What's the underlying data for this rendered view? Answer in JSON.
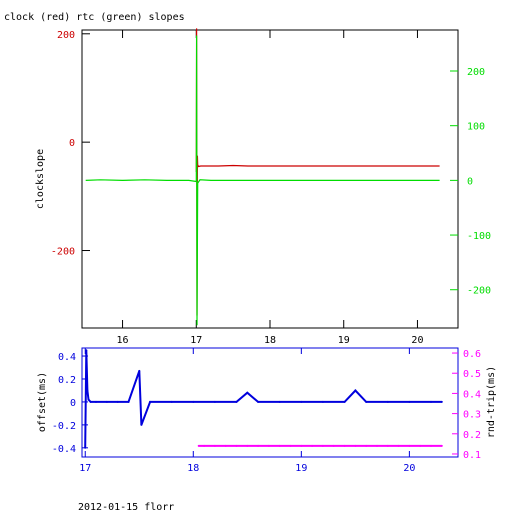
{
  "title": "clock (red) rtc (green) slopes",
  "footer": "2012-01-15 florr",
  "colors": {
    "clock": "#cc0000",
    "rtc": "#00dd00",
    "offset": "#0000dd",
    "rndtrip": "#ff00ff",
    "axis": "#000000"
  },
  "chart_data": [
    {
      "type": "line",
      "title": "clock (red) rtc (green) slopes",
      "ylabel": "clockslope",
      "xlim": [
        15.45,
        20.55
      ],
      "ylim": [
        -343,
        207
      ],
      "y2lim": [
        -270,
        275
      ],
      "x_ticks": [
        16,
        17,
        18,
        19,
        20
      ],
      "y_ticks": [
        200,
        0,
        -200
      ],
      "y2_ticks": [
        200,
        100,
        0,
        -100,
        -200
      ],
      "grid": false,
      "series": [
        {
          "name": "clock",
          "axis": "left",
          "x": [
            17.0,
            17.005,
            17.01,
            17.015,
            17.02,
            17.03,
            17.06,
            17.1,
            17.2,
            17.3,
            17.5,
            17.7,
            18.0,
            18.3,
            18.5,
            18.7,
            19.0,
            19.3,
            19.5,
            19.7,
            20.0,
            20.3
          ],
          "y": [
            -55,
            210,
            -320,
            -25,
            -42,
            -45,
            -44,
            -44,
            -44,
            -44,
            -43,
            -44,
            -44,
            -44,
            -44,
            -44,
            -44,
            -44,
            -44,
            -44,
            -44,
            -44
          ]
        },
        {
          "name": "rtc",
          "axis": "right",
          "x": [
            15.5,
            15.7,
            16.0,
            16.3,
            16.6,
            16.9,
            17.0,
            17.005,
            17.01,
            17.02,
            17.05,
            17.2,
            17.4,
            17.6,
            18.0,
            18.3,
            18.6,
            19.0,
            19.3,
            19.6,
            20.0,
            20.3
          ],
          "y": [
            0,
            1,
            0,
            1,
            0,
            0,
            -2,
            265,
            -265,
            -5,
            1,
            0,
            0,
            0,
            0,
            0,
            0,
            0,
            0,
            0,
            0,
            0
          ]
        }
      ]
    },
    {
      "type": "scatter",
      "ylabel": "offset(ms)",
      "y2label": "rnd-trip(ms)",
      "xlim": [
        16.97,
        20.45
      ],
      "ylim": [
        -0.48,
        0.47
      ],
      "y2lim": [
        0.085,
        0.625
      ],
      "x_ticks": [
        17,
        18,
        19,
        20
      ],
      "y_ticks": [
        0.4,
        0.2,
        0,
        -0.2,
        -0.4
      ],
      "y2_ticks": [
        0.6,
        0.5,
        0.4,
        0.3,
        0.2,
        0.1
      ],
      "grid": false,
      "series": [
        {
          "name": "offset",
          "axis": "left",
          "x": [
            17.0,
            17.01,
            17.02,
            17.03,
            17.05,
            17.1,
            17.2,
            17.3,
            17.4,
            17.5,
            17.52,
            17.6,
            17.8,
            18.0,
            18.2,
            18.4,
            18.5,
            18.6,
            18.8,
            19.0,
            19.2,
            19.4,
            19.5,
            19.6,
            19.8,
            20.0,
            20.2,
            20.3
          ],
          "y": [
            -0.4,
            0.45,
            0.1,
            0.02,
            0.0,
            0.0,
            0.0,
            0.0,
            0.0,
            0.27,
            -0.2,
            0.0,
            0.0,
            0.0,
            0.0,
            0.0,
            0.08,
            0.0,
            0.0,
            0.0,
            0.0,
            0.0,
            0.1,
            0.0,
            0.0,
            0.0,
            0.0,
            0.0
          ]
        },
        {
          "name": "rnd-trip",
          "axis": "right",
          "x": [
            18.05,
            18.1,
            18.2,
            18.3,
            18.4,
            18.5,
            18.6,
            18.7,
            18.8,
            18.9,
            19.0,
            19.1,
            19.2,
            19.3,
            19.4,
            19.5,
            19.6,
            19.7,
            19.8,
            19.9,
            20.0,
            20.1,
            20.2,
            20.3
          ],
          "y": [
            0.14,
            0.14,
            0.14,
            0.14,
            0.14,
            0.14,
            0.14,
            0.14,
            0.14,
            0.14,
            0.14,
            0.14,
            0.14,
            0.14,
            0.14,
            0.14,
            0.14,
            0.14,
            0.14,
            0.14,
            0.14,
            0.14,
            0.14,
            0.14
          ]
        }
      ]
    }
  ]
}
